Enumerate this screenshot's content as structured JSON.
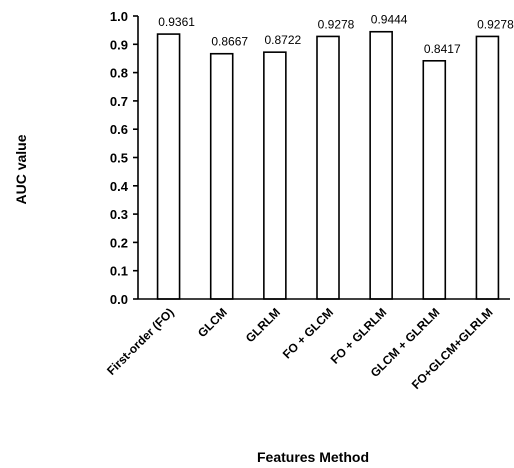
{
  "chart_data": {
    "type": "bar",
    "categories": [
      "First-order (FO)",
      "GLCM",
      "GLRLM",
      "FO + GLCM",
      "FO + GLRLM",
      "GLCM + GLRLM",
      "FO+GLCM+GLRLM"
    ],
    "values": [
      0.9361,
      0.8667,
      0.8722,
      0.9278,
      0.9444,
      0.8417,
      0.9278
    ],
    "data_labels": [
      "0.9361",
      "0.8667",
      "0.8722",
      "0.9278",
      "0.9444",
      "0.8417",
      "0.9278"
    ],
    "xlabel": "Features Method",
    "ylabel": "AUC value",
    "ylim": [
      0,
      1.0
    ],
    "yticks": [
      "0.0",
      "0.1",
      "0.2",
      "0.3",
      "0.4",
      "0.5",
      "0.6",
      "0.7",
      "0.8",
      "0.9",
      "1.0"
    ],
    "grid": false,
    "legend": "none"
  }
}
